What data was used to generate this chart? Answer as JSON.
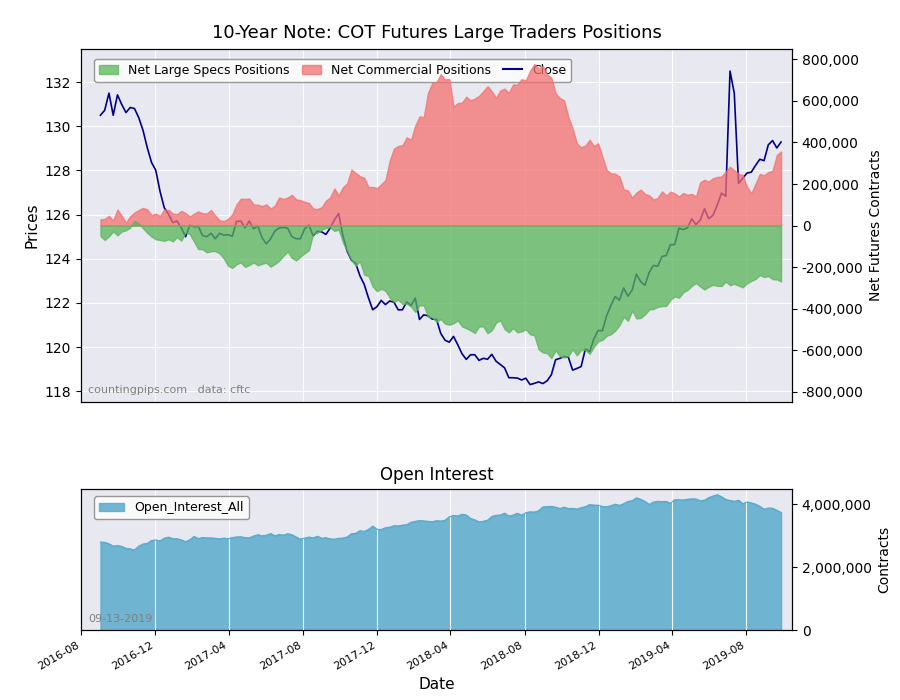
{
  "title": "10-Year Note: COT Futures Large Traders Positions",
  "title2": "Open Interest",
  "xlabel": "Date",
  "ylabel1": "Prices",
  "ylabel2": "Net Futures Contracts",
  "ylabel3": "Contracts",
  "legend_specs": [
    "Net Large Specs Positions",
    "Net Commercial Positions",
    "Close"
  ],
  "specs_color": "#5ab55a",
  "commercial_color": "#f47070",
  "close_color": "#00008b",
  "oi_color": "#5aabcc",
  "bg_color": "#e8e8f0",
  "annotation": "countingpips.com   data: cftc",
  "annotation2": "09-13-2019",
  "date_start": "2016-08-01",
  "date_end": "2019-10-01",
  "price_ylim": [
    117.5,
    133.5
  ],
  "cot_ylim": [
    -850000,
    850000
  ],
  "oi_ylim": [
    0,
    4500000
  ]
}
